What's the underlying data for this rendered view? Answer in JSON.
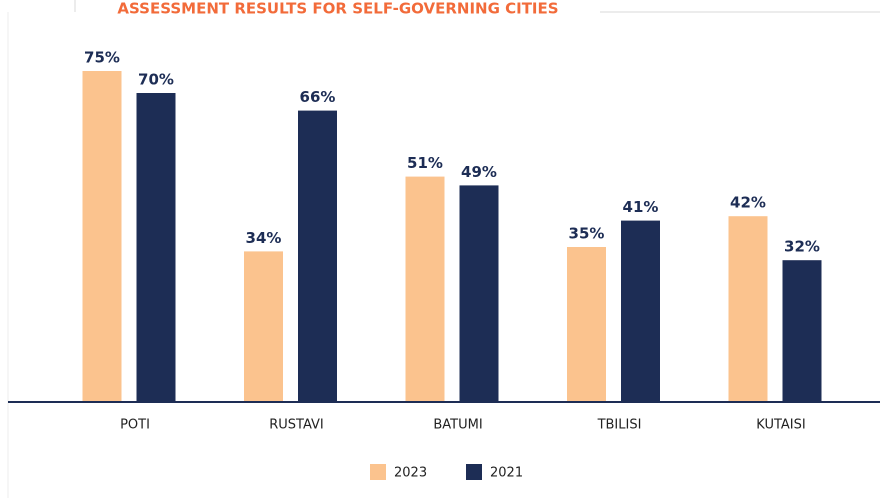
{
  "chart_data": {
    "type": "bar",
    "title": "ASSESSMENT RESULTS FOR SELF-GOVERNING CITIES",
    "categories": [
      "POTI",
      "RUSTAVI",
      "BATUMI",
      "TBILISI",
      "KUTAISI"
    ],
    "series": [
      {
        "name": "2023",
        "color": "#fbc38e",
        "values": [
          75,
          34,
          51,
          35,
          42
        ],
        "value_labels": [
          "75%",
          "34%",
          "51%",
          "35%",
          "42%"
        ]
      },
      {
        "name": "2021",
        "color": "#1d2d55",
        "values": [
          70,
          66,
          49,
          41,
          32
        ],
        "value_labels": [
          "70%",
          "66%",
          "49%",
          "41%",
          "32%"
        ]
      }
    ],
    "legend": "bottom"
  }
}
